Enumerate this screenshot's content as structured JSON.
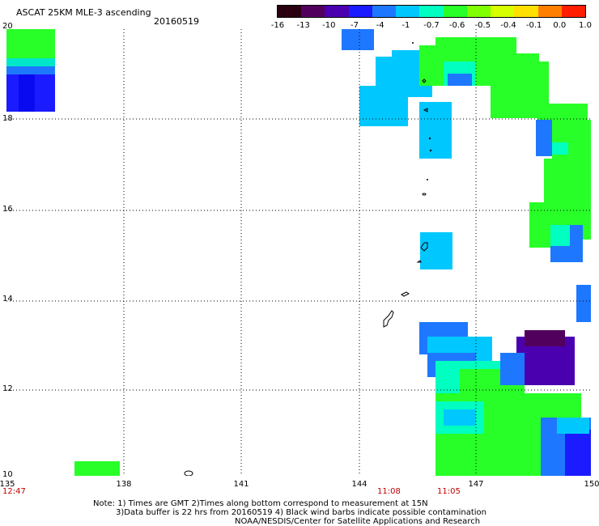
{
  "header": {
    "title": "ASCAT 25KM MLE-3 ascending",
    "date": "20160519"
  },
  "colorbar": {
    "labels": [
      "-16",
      "-13",
      "-10",
      "-7",
      "-4",
      "-1",
      "-0.7",
      "-0.6",
      "-0.5",
      "-0.4",
      "-0.1",
      "0.0",
      "1.0"
    ],
    "colors": [
      "#2a0010",
      "#52005e",
      "#4b00b0",
      "#1b1bff",
      "#1e78ff",
      "#00c8ff",
      "#00ffc0",
      "#28ff28",
      "#80ff00",
      "#d8ff00",
      "#ffe000",
      "#ff8000",
      "#ff1e00"
    ]
  },
  "map": {
    "lat_labels": [
      "20",
      "18",
      "16",
      "14",
      "12",
      "10"
    ],
    "lon_labels": [
      "135",
      "138",
      "141",
      "144",
      "147",
      "150"
    ],
    "time_labels": {
      "left": "12:47",
      "mid1": "11:08",
      "mid2": "11:05"
    }
  },
  "notes": {
    "line1": "Note: 1) Times are GMT 2)Times along bottom correspond to measurement at 15N",
    "line2": "3)Data buffer is 22 hrs from 20160519 4) Black wind barbs indicate possible contamination",
    "line3": "NOAA/NESDIS/Center for Satellite Applications and Research"
  }
}
